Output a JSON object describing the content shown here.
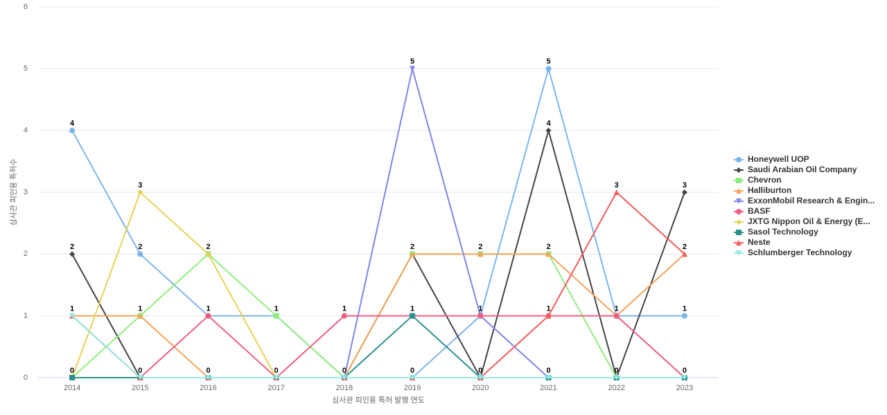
{
  "chart_data": {
    "type": "line",
    "x_label": "심사관 피인용 특허 발행 연도",
    "y_label": "심사관 피인용 특허수",
    "categories": [
      "2014",
      "2015",
      "2016",
      "2017",
      "2018",
      "2019",
      "2020",
      "2021",
      "2022",
      "2023"
    ],
    "ylim": [
      0,
      6
    ],
    "yticks": [
      0,
      1,
      2,
      3,
      4,
      5,
      6
    ],
    "grid": true,
    "legend": "right",
    "series": [
      {
        "name": "Honeywell UOP",
        "color": "#7cb5ec",
        "marker": "circle",
        "values": [
          4,
          2,
          1,
          1,
          0,
          0,
          1,
          5,
          1,
          1
        ]
      },
      {
        "name": "Saudi Arabian Oil Company",
        "color": "#434348",
        "marker": "diamond",
        "values": [
          2,
          0,
          0,
          0,
          0,
          2,
          0,
          4,
          0,
          3
        ]
      },
      {
        "name": "Chevron",
        "color": "#90ed7d",
        "marker": "square",
        "values": [
          0,
          1,
          2,
          1,
          0,
          2,
          2,
          2,
          0,
          0
        ]
      },
      {
        "name": "Halliburton",
        "color": "#f7a35c",
        "marker": "triangle",
        "values": [
          1,
          1,
          0,
          0,
          0,
          2,
          2,
          2,
          1,
          2
        ]
      },
      {
        "name": "ExxonMobil Research & Engin...",
        "color": "#8085e9",
        "marker": "triangle-down",
        "values": [
          0,
          0,
          0,
          0,
          0,
          5,
          1,
          0,
          0,
          0
        ]
      },
      {
        "name": "BASF",
        "color": "#f15c80",
        "marker": "circle",
        "values": [
          0,
          0,
          1,
          0,
          1,
          1,
          1,
          1,
          1,
          0
        ]
      },
      {
        "name": "JXTG Nippon Oil & Energy (E...",
        "color": "#e4d354",
        "marker": "diamond",
        "values": [
          0,
          3,
          2,
          0,
          0,
          0,
          0,
          0,
          0,
          0
        ]
      },
      {
        "name": "Sasol Technology",
        "color": "#2b908f",
        "marker": "square",
        "values": [
          0,
          0,
          0,
          0,
          0,
          1,
          0,
          0,
          0,
          0
        ]
      },
      {
        "name": "Neste",
        "color": "#f45b5b",
        "marker": "triangle",
        "values": [
          1,
          0,
          0,
          0,
          0,
          0,
          0,
          1,
          3,
          2
        ]
      },
      {
        "name": "Schlumberger Technology",
        "color": "#91e8e1",
        "marker": "triangle-down",
        "values": [
          1,
          0,
          0,
          0,
          0,
          0,
          0,
          0,
          0,
          0
        ]
      }
    ]
  }
}
